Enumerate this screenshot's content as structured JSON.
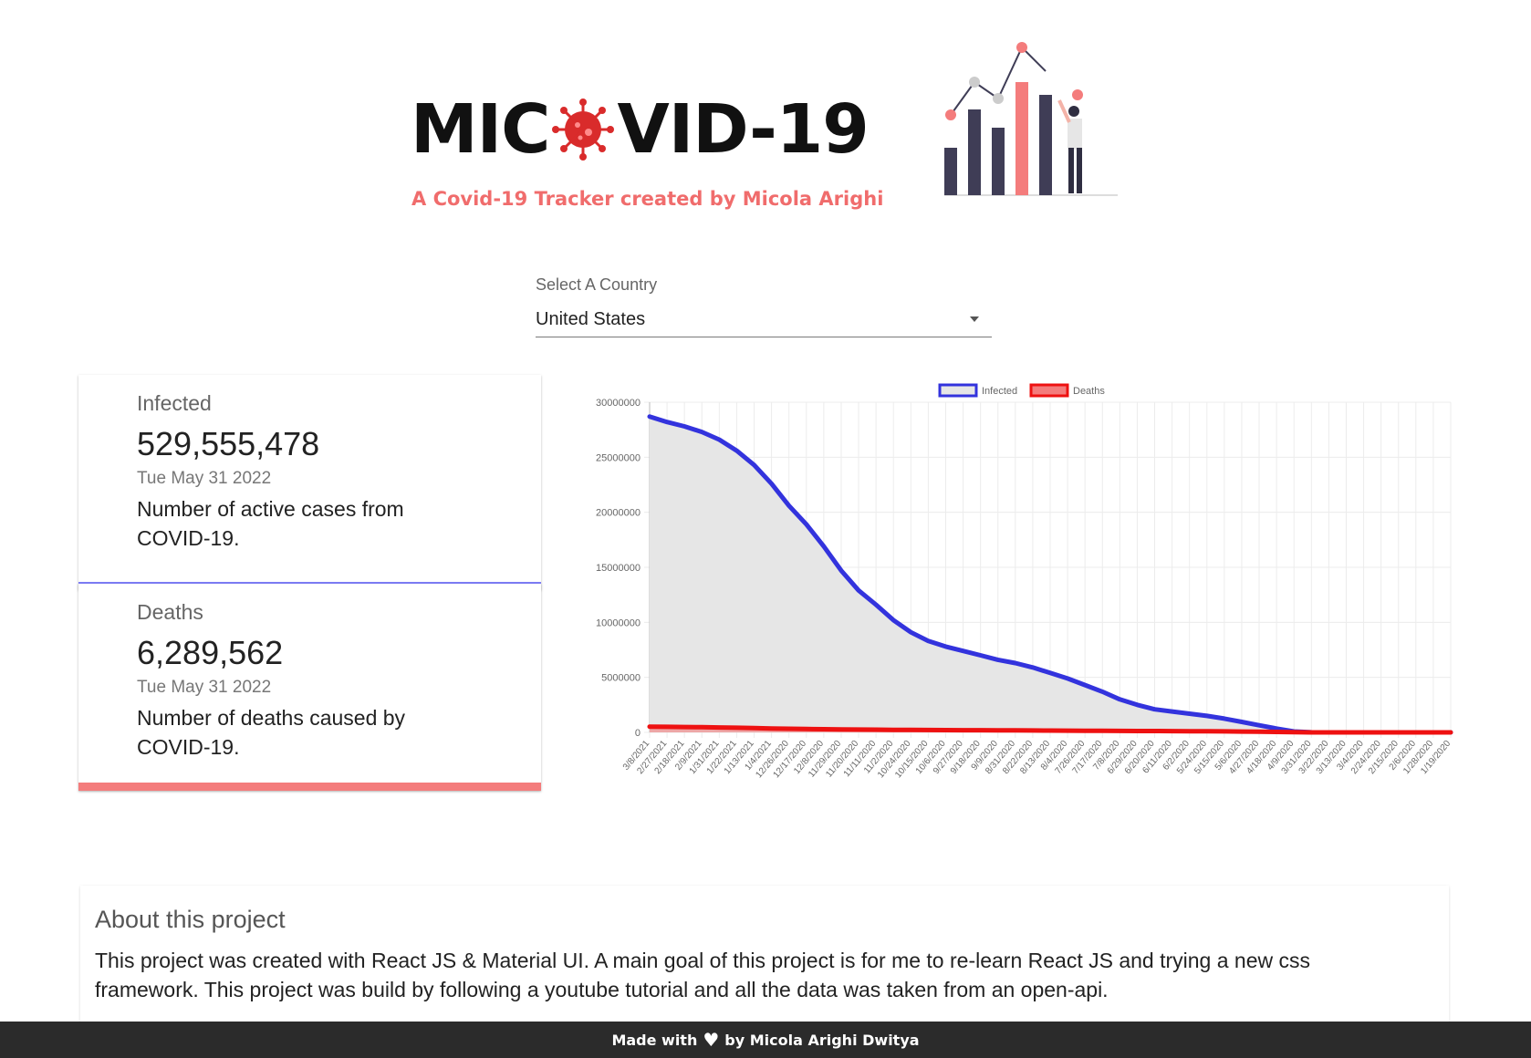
{
  "header": {
    "logo_left": "MIC",
    "logo_right": "VID-19",
    "subtitle": "A Covid-19 Tracker created by Micola Arighi"
  },
  "country_select": {
    "label": "Select A Country",
    "value": "United States"
  },
  "cards": {
    "infected": {
      "title": "Infected",
      "value": "529,555,478",
      "date": "Tue May 31 2022",
      "description": "Number of active cases from COVID-19.",
      "accent": "#7d7df7"
    },
    "deaths": {
      "title": "Deaths",
      "value": "6,289,562",
      "date": "Tue May 31 2022",
      "description": "Number of deaths caused by COVID-19.",
      "accent": "#f47c7c"
    }
  },
  "chart_data": {
    "type": "line",
    "title": "",
    "xlabel": "",
    "ylabel": "",
    "ylim": [
      0,
      30000000
    ],
    "yticks": [
      "0",
      "5000000",
      "10000000",
      "15000000",
      "20000000",
      "25000000",
      "30000000"
    ],
    "legend_position": "top-center",
    "grid": true,
    "x": [
      "3/8/2021",
      "2/27/2021",
      "2/18/2021",
      "2/9/2021",
      "1/31/2021",
      "1/22/2021",
      "1/13/2021",
      "1/4/2021",
      "12/26/2020",
      "12/17/2020",
      "12/8/2020",
      "11/29/2020",
      "11/20/2020",
      "11/11/2020",
      "11/2/2020",
      "10/24/2020",
      "10/15/2020",
      "10/6/2020",
      "9/27/2020",
      "9/18/2020",
      "9/9/2020",
      "8/31/2020",
      "8/22/2020",
      "8/13/2020",
      "8/4/2020",
      "7/26/2020",
      "7/17/2020",
      "7/8/2020",
      "6/29/2020",
      "6/20/2020",
      "6/11/2020",
      "6/2/2020",
      "5/24/2020",
      "5/15/2020",
      "5/6/2020",
      "4/27/2020",
      "4/18/2020",
      "4/9/2020",
      "3/31/2020",
      "3/22/2020",
      "3/13/2020",
      "3/4/2020",
      "2/24/2020",
      "2/15/2020",
      "2/6/2020",
      "1/28/2020",
      "1/19/2020"
    ],
    "series": [
      {
        "name": "Infected",
        "color": "#3333dd",
        "fill": "#e6e6e6",
        "values": [
          28700000,
          28200000,
          27800000,
          27300000,
          26600000,
          25600000,
          24300000,
          22600000,
          20600000,
          18900000,
          16900000,
          14700000,
          12900000,
          11600000,
          10200000,
          9100000,
          8300000,
          7800000,
          7400000,
          7000000,
          6600000,
          6300000,
          5900000,
          5400000,
          4900000,
          4300000,
          3700000,
          3000000,
          2500000,
          2100000,
          1900000,
          1700000,
          1500000,
          1250000,
          950000,
          650000,
          350000,
          80000,
          10000,
          0,
          0,
          0,
          0,
          0,
          0,
          0,
          0
        ]
      },
      {
        "name": "Deaths",
        "color": "#ee1111",
        "fill": "#f47c7c",
        "values": [
          520000,
          505000,
          490000,
          470000,
          450000,
          420000,
          390000,
          360000,
          330000,
          310000,
          290000,
          270000,
          255000,
          245000,
          235000,
          225000,
          217000,
          210000,
          202000,
          195000,
          188000,
          180000,
          172000,
          164000,
          155000,
          146000,
          138000,
          132000,
          127000,
          122000,
          116000,
          110000,
          100000,
          90000,
          77000,
          60000,
          40000,
          20000,
          4000,
          0,
          0,
          0,
          0,
          0,
          0,
          0,
          0
        ]
      }
    ]
  },
  "about": {
    "title": "About this project",
    "text": "This project was created with React JS & Material UI. A main goal of this project is for me to re-learn React JS and trying a new css framework. This project was build by following a youtube tutorial and all the data was taken from an open-api."
  },
  "footer": {
    "prefix": "Made with",
    "suffix": "by Micola Arighi Dwitya",
    "heart_icon": "heart-icon"
  }
}
